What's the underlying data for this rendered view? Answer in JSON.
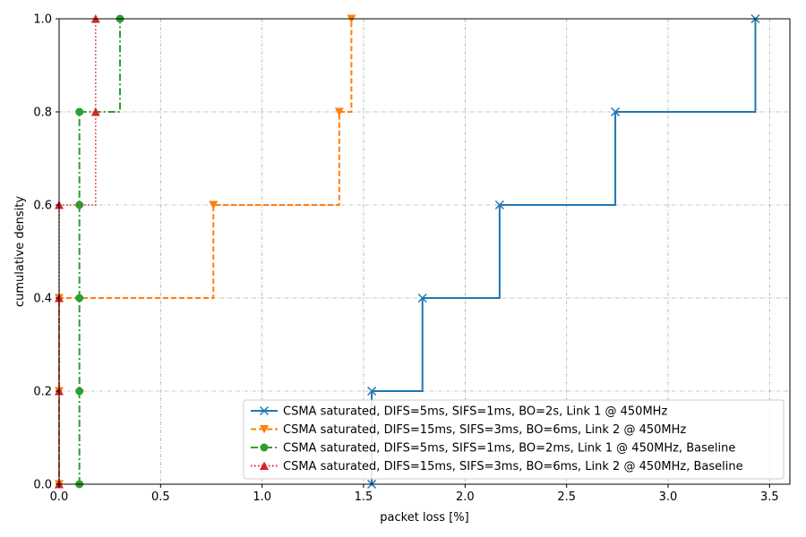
{
  "chart_data": {
    "type": "line",
    "drawstyle": "steps-post",
    "xlabel": "packet loss [%]",
    "ylabel": "cumulative density",
    "xlim": [
      0,
      3.6
    ],
    "ylim": [
      0,
      1.0
    ],
    "xticks": [
      0,
      0.5,
      1.0,
      1.5,
      2.0,
      2.5,
      3.0,
      3.5
    ],
    "xtick_labels": [
      "0.0",
      "0.5",
      "1.0",
      "1.5",
      "2.0",
      "2.5",
      "3.0",
      "3.5"
    ],
    "yticks": [
      0,
      0.2,
      0.4,
      0.6,
      0.8,
      1.0
    ],
    "ytick_labels": [
      "0.0",
      "0.2",
      "0.4",
      "0.6",
      "0.8",
      "1.0"
    ],
    "grid": true,
    "legend_position": "lower-right",
    "series": [
      {
        "name": "CSMA saturated, DIFS=5ms, SIFS=1ms, BO=2s, Link 1 @ 450MHz",
        "color": "#1f77b4",
        "linestyle": "solid",
        "marker": "x",
        "x": [
          1.54,
          1.54,
          1.79,
          2.17,
          2.74,
          3.43
        ],
        "y": [
          0.0,
          0.2,
          0.4,
          0.6,
          0.8,
          1.0
        ]
      },
      {
        "name": "CSMA saturated, DIFS=15ms, SIFS=3ms, BO=6ms, Link 2 @ 450MHz",
        "color": "#ff7f0e",
        "linestyle": "dashed",
        "marker": "triangle-down",
        "x": [
          0.0,
          0.0,
          0.0,
          0.76,
          1.38,
          1.44
        ],
        "y": [
          0.0,
          0.2,
          0.4,
          0.6,
          0.8,
          1.0
        ]
      },
      {
        "name": "CSMA saturated, DIFS=5ms, SIFS=1ms, BO=2ms, Link 1 @ 450MHz,  Baseline",
        "color": "#2ca02c",
        "linestyle": "dashdot",
        "marker": "circle",
        "x": [
          0.1,
          0.1,
          0.1,
          0.1,
          0.1,
          0.3
        ],
        "y": [
          0.0,
          0.2,
          0.4,
          0.6,
          0.8,
          1.0
        ]
      },
      {
        "name": "CSMA saturated, DIFS=15ms, SIFS=3ms, BO=6ms, Link 2 @ 450MHz,  Baseline",
        "color": "#d62728",
        "linestyle": "dotted",
        "marker": "triangle-up",
        "x": [
          0.0,
          0.0,
          0.0,
          0.0,
          0.18,
          0.18
        ],
        "y": [
          0.0,
          0.2,
          0.4,
          0.6,
          0.8,
          1.0
        ]
      }
    ]
  }
}
